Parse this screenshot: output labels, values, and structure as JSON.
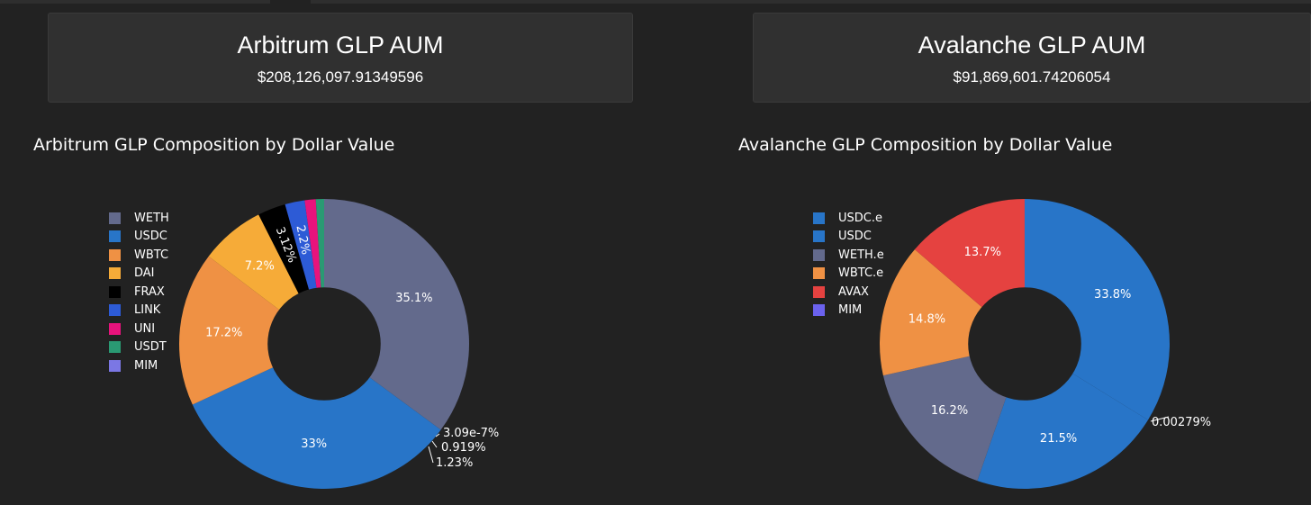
{
  "cards": [
    {
      "title": "Arbitrum GLP AUM",
      "value": "$208,126,097.91349596"
    },
    {
      "title": "Avalanche GLP AUM",
      "value": "$91,869,601.74206054"
    }
  ],
  "chart_data": [
    {
      "type": "pie",
      "title": "Arbitrum GLP Composition by Dollar Value",
      "hole": 0.39,
      "legend_position": "left",
      "slices": [
        {
          "label": "WETH",
          "value": 35.1,
          "text": "35.1%",
          "color": "#636a8c"
        },
        {
          "label": "USDC",
          "value": 33.0,
          "text": "33%",
          "color": "#2875c8"
        },
        {
          "label": "WBTC",
          "value": 17.2,
          "text": "17.2%",
          "color": "#ef9144"
        },
        {
          "label": "DAI",
          "value": 7.2,
          "text": "7.2%",
          "color": "#f6ab38"
        },
        {
          "label": "FRAX",
          "value": 3.12,
          "text": "3.12%",
          "color": "#000000"
        },
        {
          "label": "LINK",
          "value": 2.2,
          "text": "2.2%",
          "color": "#2d5bd6"
        },
        {
          "label": "UNI",
          "value": 1.23,
          "text": "1.23%",
          "color": "#e8137c"
        },
        {
          "label": "USDT",
          "value": 0.919,
          "text": "0.919%",
          "color": "#2a9a73"
        },
        {
          "label": "MIM",
          "value": 3.09e-07,
          "text": "3.09e-7%",
          "color": "#7b77e4"
        }
      ]
    },
    {
      "type": "pie",
      "title": "Avalanche GLP Composition by Dollar Value",
      "hole": 0.39,
      "legend_position": "left",
      "slices": [
        {
          "label": "USDC.e",
          "value": 33.8,
          "text": "33.8%",
          "color": "#2875c8"
        },
        {
          "label": "USDC",
          "value": 21.5,
          "text": "21.5%",
          "color": "#2875c8"
        },
        {
          "label": "WETH.e",
          "value": 16.2,
          "text": "16.2%",
          "color": "#636a8c"
        },
        {
          "label": "WBTC.e",
          "value": 14.8,
          "text": "14.8%",
          "color": "#ef9144"
        },
        {
          "label": "AVAX",
          "value": 13.7,
          "text": "13.7%",
          "color": "#e54240"
        },
        {
          "label": "MIM",
          "value": 0.00279,
          "text": "0.00279%",
          "color": "#6b62ee"
        }
      ]
    }
  ]
}
